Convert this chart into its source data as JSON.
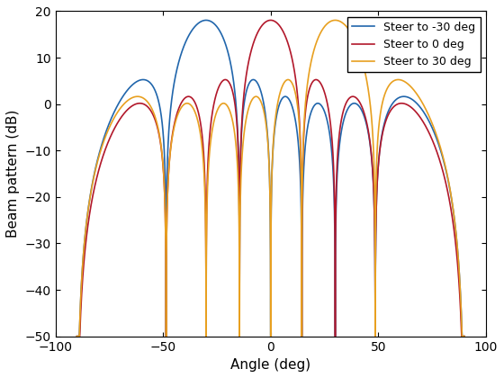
{
  "title": "",
  "xlabel": "Angle (deg)",
  "ylabel": "Beam pattern (dB)",
  "xlim": [
    -100,
    100
  ],
  "ylim": [
    -50,
    20
  ],
  "steer_angles": [
    -30,
    0,
    30
  ],
  "num_elements": 8,
  "d_over_lambda": 0.5,
  "colors": [
    "#2166AC",
    "#B2182B",
    "#E8A020"
  ],
  "labels": [
    "Steer to -30 deg",
    "Steer to 0 deg",
    "Steer to 30 deg"
  ],
  "linewidth": 1.2,
  "grid": false,
  "legend_loc": "upper right",
  "floor_dB": -50
}
